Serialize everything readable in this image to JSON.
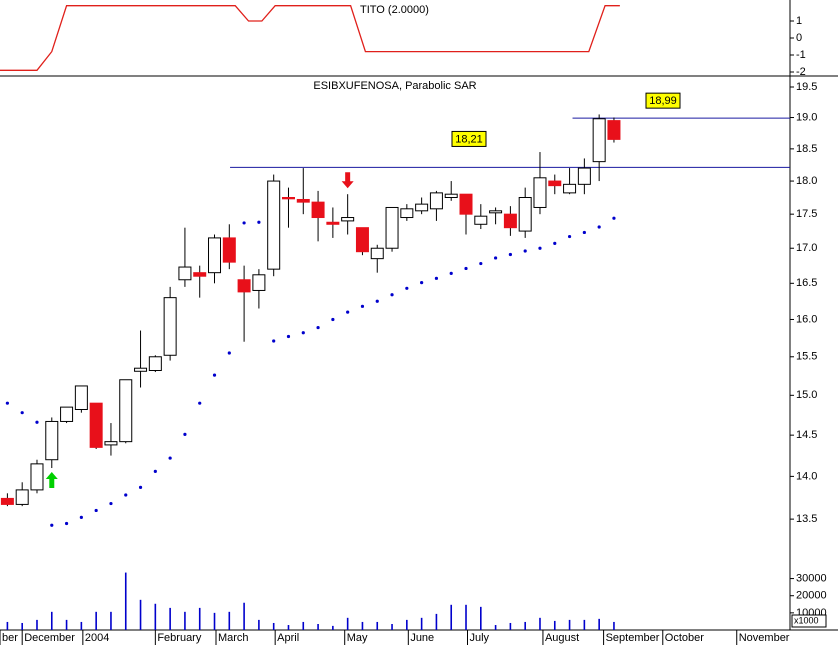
{
  "chart_data": [
    {
      "type": "line",
      "title": "TITO (2.0000)",
      "color": "#e0201b",
      "x": [
        -0.5,
        2,
        3,
        4,
        15.4,
        16.3,
        17.2,
        18.1,
        23.2,
        24.2,
        39.3,
        40.4,
        41.4
      ],
      "values": [
        -1.9,
        -1.9,
        -0.8,
        1.9,
        1.9,
        1,
        1,
        1.9,
        1.9,
        -0.8,
        -0.8,
        1.9,
        1.9
      ],
      "xlim": [
        -0.5,
        52.9
      ],
      "ylim": [
        -2.2,
        2.2
      ],
      "yticks": [
        1,
        0,
        -1,
        -2
      ]
    },
    {
      "type": "candlestick",
      "title": "ESIBXUFENOSA, Parabolic SAR",
      "log_scale": true,
      "xlim": [
        -0.5,
        52.9
      ],
      "ylim": [
        12.95,
        19.65
      ],
      "yticks": [
        {
          "value": 13.5,
          "label": "13.5"
        },
        {
          "value": 14,
          "label": "14.0"
        },
        {
          "value": 14.5,
          "label": "14.5"
        },
        {
          "value": 15,
          "label": "15.0"
        },
        {
          "value": 15.5,
          "label": "15.5"
        },
        {
          "value": 16,
          "label": "16.0"
        },
        {
          "value": 16.5,
          "label": "16.5"
        },
        {
          "value": 17,
          "label": "17.0"
        },
        {
          "value": 17.5,
          "label": "17.5"
        },
        {
          "value": 18,
          "label": "18.0"
        },
        {
          "value": 18.5,
          "label": "18.5"
        },
        {
          "value": 19,
          "label": "19.0"
        },
        {
          "value": 19.5,
          "label": "19.5"
        }
      ],
      "up_color": "#ffffff",
      "down_color": "#e8101a",
      "open": [
        13.74,
        13.67,
        13.84,
        14.2,
        14.67,
        14.82,
        14.9,
        14.38,
        14.42,
        15.31,
        15.32,
        15.52,
        16.55,
        16.65,
        16.65,
        17.15,
        16.55,
        16.4,
        16.7,
        17.75,
        17.72,
        17.68,
        17.38,
        17.4,
        17.3,
        16.85,
        17.0,
        17.45,
        17.55,
        17.58,
        17.75,
        17.8,
        17.35,
        17.52,
        17.5,
        17.25,
        17.6,
        18.0,
        17.82,
        17.95,
        18.3,
        18.95
      ],
      "high": [
        13.8,
        13.93,
        14.2,
        14.72,
        14.85,
        15.12,
        14.9,
        14.65,
        15.2,
        15.85,
        15.52,
        16.45,
        17.3,
        16.75,
        17.2,
        17.35,
        16.75,
        16.7,
        18.1,
        17.9,
        18.2,
        17.85,
        17.6,
        17.8,
        17.3,
        17.05,
        17.6,
        17.65,
        17.75,
        17.85,
        18.0,
        17.8,
        17.65,
        17.6,
        17.62,
        17.9,
        18.45,
        18.1,
        18.2,
        18.35,
        19.05,
        19.0
      ],
      "low": [
        13.65,
        13.65,
        13.8,
        14.1,
        14.65,
        14.78,
        14.33,
        14.25,
        14.4,
        15.1,
        15.3,
        15.45,
        16.45,
        16.3,
        16.5,
        16.7,
        15.7,
        16.15,
        16.6,
        17.3,
        17.5,
        17.1,
        17.15,
        17.2,
        16.9,
        16.65,
        16.95,
        17.4,
        17.5,
        17.4,
        17.7,
        17.2,
        17.28,
        17.35,
        17.18,
        17.15,
        17.5,
        17.8,
        17.8,
        17.8,
        18.0,
        18.6
      ],
      "close": [
        13.67,
        13.84,
        14.15,
        14.67,
        14.85,
        15.12,
        14.35,
        14.42,
        15.2,
        15.35,
        15.5,
        16.3,
        16.73,
        16.6,
        17.15,
        16.8,
        16.38,
        16.62,
        18.0,
        17.73,
        17.68,
        17.45,
        17.35,
        17.45,
        16.95,
        17.0,
        17.6,
        17.58,
        17.65,
        17.82,
        17.8,
        17.5,
        17.47,
        17.55,
        17.3,
        17.75,
        18.05,
        17.93,
        17.95,
        18.2,
        18.98,
        18.65
      ],
      "sar": {
        "color": "#0000cc",
        "values": [
          14.9,
          14.78,
          14.66,
          13.43,
          13.45,
          13.52,
          13.6,
          13.68,
          13.78,
          13.87,
          14.06,
          14.22,
          14.51,
          14.9,
          15.26,
          15.55,
          17.37,
          17.38,
          15.71,
          15.77,
          15.82,
          15.89,
          16.0,
          16.1,
          16.18,
          16.25,
          16.34,
          16.43,
          16.51,
          16.57,
          16.64,
          16.71,
          16.78,
          16.86,
          16.91,
          16.96,
          17.0,
          17.07,
          17.17,
          17.23,
          17.31,
          17.44
        ]
      },
      "levels": [
        {
          "value": 18.21,
          "label": "18,21",
          "start": 15.05
        },
        {
          "value": 18.99,
          "label": "18,99",
          "start": 38.2
        }
      ],
      "level_color": "#1a1aa0",
      "buy_signals": [
        3
      ],
      "sell_signals": [
        23
      ]
    },
    {
      "type": "bar",
      "color": "#0000cc",
      "xlim": [
        -0.5,
        52.9
      ],
      "ylim": [
        0,
        35000
      ],
      "yticks": [
        10000,
        20000,
        30000
      ],
      "unit_label": "x1000",
      "values": [
        4700,
        4100,
        5900,
        10600,
        5900,
        4700,
        10600,
        10600,
        33500,
        17600,
        15300,
        12900,
        10600,
        12900,
        10000,
        10600,
        15900,
        5900,
        4100,
        2900,
        4700,
        3500,
        2400,
        7100,
        4700,
        4700,
        3500,
        5900,
        7100,
        9400,
        14700,
        14700,
        13500,
        2900,
        4100,
        4700,
        7100,
        5300,
        5900,
        5900,
        6500,
        4700
      ],
      "xticks": [
        {
          "value": -0.5,
          "label": "ber"
        },
        {
          "value": 1,
          "label": "December"
        },
        {
          "value": 5.1,
          "label": "2004"
        },
        {
          "value": 10,
          "label": "February"
        },
        {
          "value": 14.1,
          "label": "March"
        },
        {
          "value": 18.1,
          "label": "April"
        },
        {
          "value": 22.8,
          "label": "May"
        },
        {
          "value": 27.1,
          "label": "June"
        },
        {
          "value": 31.1,
          "label": "July"
        },
        {
          "value": 36.2,
          "label": "August"
        },
        {
          "value": 40.3,
          "label": "September"
        },
        {
          "value": 44.3,
          "label": "October"
        },
        {
          "value": 49.3,
          "label": "November"
        }
      ]
    }
  ]
}
